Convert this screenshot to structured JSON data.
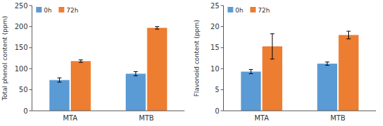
{
  "chart_data": [
    {
      "type": "bar",
      "y_label": "Total phenol content (ppm)",
      "categories": [
        "MTA",
        "MTB"
      ],
      "series": [
        {
          "name": "0h",
          "color": "#5B9BD5",
          "values": [
            73,
            88
          ],
          "errors": [
            5,
            5
          ]
        },
        {
          "name": "72h",
          "color": "#ED7D31",
          "values": [
            118,
            197
          ],
          "errors": [
            3,
            3
          ]
        }
      ],
      "ylim": [
        0,
        250
      ],
      "yticks": [
        0,
        50,
        100,
        150,
        200,
        250
      ],
      "grid": false,
      "legend": "upper left"
    },
    {
      "type": "bar",
      "y_label": "Flavonoid content (ppm)",
      "categories": [
        "MTA",
        "MTB"
      ],
      "series": [
        {
          "name": "0h",
          "color": "#5B9BD5",
          "values": [
            9.3,
            11.2
          ],
          "errors": [
            0.5,
            0.4
          ]
        },
        {
          "name": "72h",
          "color": "#ED7D31",
          "values": [
            15.3,
            18.0
          ],
          "errors": [
            3.0,
            0.9
          ]
        }
      ],
      "ylim": [
        0,
        25
      ],
      "yticks": [
        0,
        5,
        10,
        15,
        20,
        25
      ],
      "grid": false,
      "legend": "upper left"
    }
  ]
}
